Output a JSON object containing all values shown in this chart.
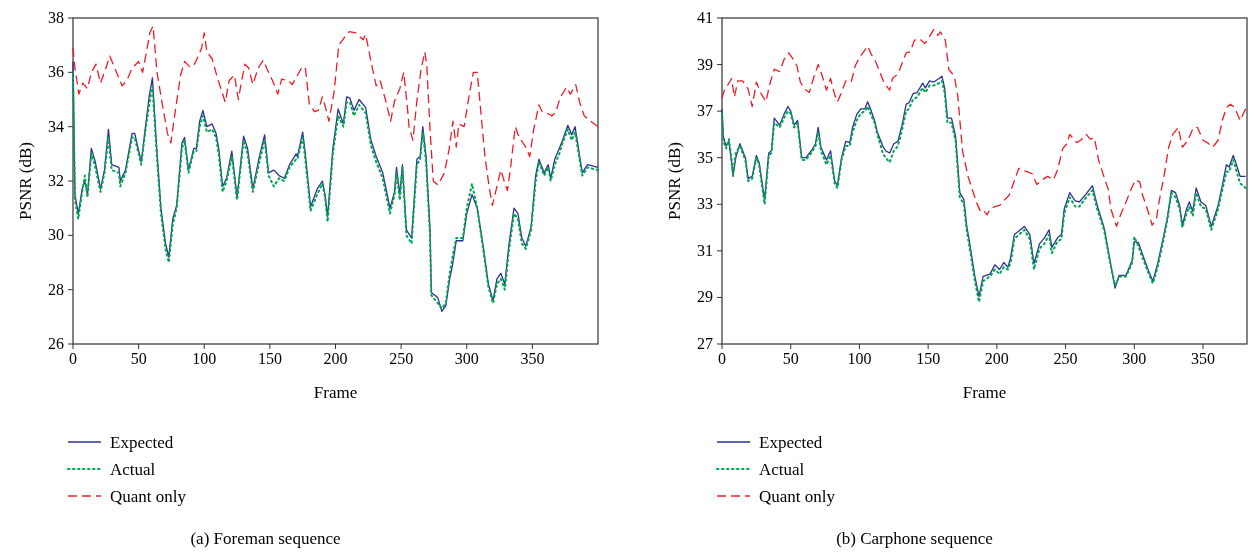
{
  "chart_data": [
    {
      "type": "line",
      "title": "(a) Foreman sequence",
      "xlabel": "Frame",
      "ylabel": "PSNR (dB)",
      "xlim": [
        0,
        400
      ],
      "xticks": [
        0,
        50,
        100,
        150,
        200,
        250,
        300,
        350
      ],
      "ylim": [
        26,
        38
      ],
      "yticks": [
        26,
        28,
        30,
        32,
        34,
        36,
        38
      ],
      "legend": "bottom left",
      "series": [
        {
          "name": "Expected",
          "color": "#2e3192",
          "line_style": "solid",
          "x": [
            0,
            1.5,
            4,
            7,
            9,
            11,
            14,
            17,
            20,
            21,
            24,
            27,
            29.5,
            35,
            36,
            40,
            45,
            47,
            52,
            55,
            58,
            60.5,
            63.5,
            67,
            70.5,
            73,
            76,
            79,
            83,
            85,
            88,
            92,
            94,
            96.5,
            99,
            102,
            106,
            109,
            111,
            114,
            117,
            121,
            125,
            130,
            133,
            137,
            142,
            146,
            149,
            153,
            157,
            161,
            165,
            170,
            171,
            175,
            177,
            181,
            186,
            190,
            192,
            194,
            198,
            202,
            206,
            208.5,
            211,
            214,
            218,
            223,
            227,
            231,
            236,
            241.5,
            245,
            246.5,
            249,
            251,
            254,
            258,
            262,
            264.5,
            266.5,
            269,
            272,
            273,
            278,
            281,
            284,
            287,
            289.5,
            292,
            297,
            300,
            304,
            308,
            312.5,
            316.5,
            320,
            323,
            326,
            329,
            332,
            336,
            339,
            342,
            345,
            349,
            352.5,
            355,
            359,
            362,
            364,
            367,
            370.5,
            373,
            377,
            380,
            382.5,
            388,
            392,
            400
          ],
          "values": [
            36.4,
            31.5,
            30.8,
            31.7,
            32.0,
            31.5,
            33.2,
            32.7,
            31.95,
            31.7,
            32.4,
            33.9,
            32.6,
            32.5,
            32.0,
            32.4,
            33.75,
            33.75,
            32.7,
            33.9,
            35.1,
            35.8,
            33.4,
            31.0,
            29.7,
            29.2,
            30.6,
            31.1,
            33.4,
            33.6,
            32.4,
            33.2,
            33.2,
            34.2,
            34.6,
            34.0,
            34.1,
            33.75,
            33.2,
            31.8,
            32.1,
            33.1,
            31.4,
            33.65,
            33.2,
            31.7,
            32.9,
            33.7,
            32.3,
            32.4,
            32.2,
            32.1,
            32.6,
            33.0,
            32.9,
            33.8,
            33.0,
            31.05,
            31.7,
            32.0,
            31.5,
            30.7,
            33.2,
            34.65,
            34.1,
            35.1,
            35.05,
            34.6,
            35.0,
            34.7,
            33.5,
            32.9,
            32.3,
            31.0,
            31.6,
            32.5,
            31.5,
            32.6,
            30.2,
            29.9,
            32.8,
            32.9,
            34.0,
            32.9,
            30.2,
            27.9,
            27.7,
            27.2,
            27.4,
            28.4,
            29.0,
            29.8,
            29.8,
            30.8,
            31.5,
            31.0,
            29.6,
            28.2,
            27.6,
            28.4,
            28.6,
            28.2,
            29.6,
            31.0,
            30.8,
            29.9,
            29.6,
            30.3,
            32.2,
            32.8,
            32.3,
            32.6,
            32.1,
            32.8,
            33.2,
            33.5,
            34.05,
            33.7,
            34.0,
            32.3,
            32.6,
            32.5
          ]
        },
        {
          "name": "Actual",
          "color": "#00a651",
          "line_style": "dotted",
          "x": [
            0,
            1.5,
            4,
            7,
            9,
            11,
            14,
            17,
            20,
            21,
            24,
            27,
            29.5,
            35,
            36,
            40,
            45,
            47,
            52,
            55,
            58,
            60.5,
            63.5,
            67,
            70.5,
            73,
            76,
            79,
            83,
            85,
            88,
            92,
            94,
            96.5,
            99,
            102,
            106,
            109,
            111,
            114,
            117,
            121,
            125,
            130,
            133,
            137,
            142,
            146,
            149,
            153,
            157,
            161,
            165,
            170,
            171,
            175,
            177,
            181,
            186,
            190,
            192,
            194,
            198,
            202,
            206,
            208.5,
            211,
            214,
            218,
            223,
            227,
            231,
            236,
            241.5,
            245,
            246.5,
            249,
            251,
            254,
            258,
            262,
            264.5,
            266.5,
            269,
            272,
            273,
            278,
            281,
            284,
            287,
            289.5,
            292,
            297,
            300,
            304,
            308,
            312.5,
            316.5,
            320,
            323,
            326,
            329,
            332,
            336,
            339,
            342,
            345,
            349,
            352.5,
            355,
            359,
            362,
            364,
            367,
            370.5,
            373,
            377,
            380,
            382.5,
            388,
            392,
            400
          ],
          "values": [
            36.0,
            31.3,
            30.6,
            31.6,
            32.2,
            31.4,
            33.0,
            32.5,
            31.8,
            31.6,
            32.3,
            33.6,
            32.4,
            32.3,
            31.8,
            32.3,
            33.6,
            33.6,
            32.6,
            33.8,
            34.8,
            35.5,
            33.2,
            30.8,
            29.5,
            29.0,
            30.4,
            31.0,
            33.2,
            33.5,
            32.3,
            33.1,
            33.1,
            34.0,
            34.4,
            33.8,
            33.9,
            33.6,
            33.0,
            31.6,
            32.0,
            32.9,
            31.3,
            33.5,
            33.0,
            31.6,
            32.7,
            33.5,
            32.2,
            31.8,
            32.1,
            32.0,
            32.5,
            32.8,
            32.8,
            33.6,
            32.8,
            30.9,
            31.5,
            31.9,
            31.4,
            30.5,
            33.0,
            34.4,
            34.0,
            34.9,
            34.9,
            34.4,
            34.8,
            34.5,
            33.3,
            32.7,
            32.1,
            30.8,
            31.5,
            32.3,
            31.3,
            32.5,
            30.0,
            29.7,
            32.6,
            32.8,
            33.8,
            32.7,
            30.0,
            27.8,
            27.5,
            27.3,
            27.5,
            28.6,
            29.3,
            29.9,
            29.9,
            31.0,
            31.9,
            31.0,
            29.5,
            28.1,
            27.5,
            28.2,
            28.4,
            28.0,
            29.4,
            30.8,
            30.6,
            29.7,
            29.5,
            30.2,
            32.0,
            32.7,
            32.2,
            32.5,
            32.0,
            32.6,
            33.0,
            33.4,
            33.9,
            33.5,
            33.8,
            32.2,
            32.5,
            32.4
          ]
        },
        {
          "name": "Quant only",
          "color": "#ed1c24",
          "line_style": "dashed",
          "x": [
            0,
            1.5,
            4.5,
            7.5,
            11,
            14,
            17.5,
            21,
            25,
            28,
            31,
            34,
            37.5,
            41,
            45,
            50,
            53,
            56,
            58.5,
            61,
            64,
            68.5,
            72,
            74.5,
            78,
            82,
            85,
            89,
            92,
            95.5,
            98,
            100,
            102,
            106,
            110,
            114,
            116,
            119,
            123,
            126,
            128.5,
            131,
            134,
            137,
            141,
            145,
            148,
            152,
            156,
            159,
            164,
            167,
            170,
            174,
            177,
            180,
            184,
            187,
            190,
            193,
            195,
            199,
            202.5,
            207,
            210.5,
            215.5,
            221,
            223,
            227,
            231,
            234,
            238,
            242,
            245,
            249,
            252,
            255,
            256,
            259,
            262,
            265,
            268,
            269.5,
            272,
            274.5,
            278,
            283,
            286.5,
            289.5,
            292,
            294,
            298,
            302,
            305,
            308,
            311,
            314,
            317,
            319.5,
            322,
            326,
            328.5,
            331,
            333.5,
            337,
            340,
            345,
            348,
            351,
            355,
            357.5,
            361,
            365,
            368,
            371,
            376,
            379,
            383,
            386,
            389.5,
            393,
            400
          ],
          "values": [
            36.9,
            36.15,
            35.2,
            35.6,
            35.4,
            36.0,
            36.3,
            35.6,
            36.15,
            36.6,
            36.25,
            35.9,
            35.5,
            35.7,
            36.15,
            36.4,
            36.0,
            36.75,
            37.45,
            37.7,
            36.0,
            34.7,
            33.75,
            33.4,
            34.6,
            35.9,
            36.4,
            36.2,
            36.25,
            36.6,
            36.9,
            37.45,
            36.75,
            36.5,
            35.8,
            35.2,
            34.9,
            35.7,
            35.9,
            35.0,
            35.7,
            36.3,
            36.15,
            35.55,
            36.15,
            36.45,
            36.1,
            35.7,
            35.2,
            35.75,
            35.7,
            35.55,
            35.8,
            36.15,
            36.2,
            34.85,
            34.55,
            34.6,
            35.1,
            34.6,
            34.2,
            35.3,
            37.0,
            37.3,
            37.5,
            37.45,
            37.2,
            37.4,
            36.4,
            35.5,
            35.7,
            35.0,
            34.2,
            34.95,
            35.4,
            36.0,
            34.6,
            34.0,
            33.5,
            34.95,
            36.05,
            36.75,
            36.3,
            33.9,
            32.0,
            31.85,
            32.3,
            33.15,
            34.2,
            33.25,
            34.1,
            34.0,
            35.2,
            36.0,
            36.0,
            34.4,
            32.85,
            31.8,
            31.1,
            31.6,
            32.4,
            32.0,
            31.65,
            32.55,
            34.0,
            33.6,
            33.25,
            32.9,
            33.9,
            34.8,
            34.55,
            34.5,
            34.4,
            34.55,
            35.05,
            35.45,
            35.2,
            35.55,
            34.9,
            34.4,
            34.25,
            34.0
          ]
        }
      ]
    },
    {
      "type": "line",
      "title": "(b) Carphone sequence",
      "xlabel": "Frame",
      "ylabel": "PSNR (dB)",
      "xlim": [
        0,
        382
      ],
      "xticks": [
        0,
        50,
        100,
        150,
        200,
        250,
        300,
        350
      ],
      "ylim": [
        27,
        41
      ],
      "yticks": [
        27,
        29,
        31,
        33,
        35,
        37,
        39,
        41
      ],
      "legend": "bottom left",
      "series": [
        {
          "name": "Expected",
          "color": "#2e3192",
          "line_style": "solid",
          "x": [
            0,
            1,
            3,
            5,
            7,
            8,
            10,
            13,
            15,
            17,
            19,
            22,
            25,
            27,
            31,
            32.5,
            34,
            36,
            38,
            42,
            45,
            48,
            50,
            52.5,
            55,
            58,
            61,
            65,
            68,
            70,
            72,
            76,
            79,
            82,
            84,
            87,
            90,
            93,
            95,
            98,
            101,
            104,
            106,
            108,
            111,
            113,
            117,
            119,
            122,
            125,
            128,
            131,
            134,
            136,
            139,
            142,
            146,
            148,
            151,
            154,
            158,
            160,
            162,
            164,
            167,
            170,
            173,
            176,
            178,
            180,
            184,
            187,
            190,
            195,
            198.5,
            202,
            205,
            208,
            210,
            212.7,
            216,
            220,
            224,
            227,
            231,
            234.5,
            238,
            240,
            244,
            247,
            249,
            253,
            257,
            260,
            265,
            269.5,
            273,
            278,
            282,
            286,
            289,
            294,
            298.5,
            300,
            303,
            306,
            310,
            313.5,
            317,
            321,
            324,
            327,
            330,
            333,
            335,
            338,
            340,
            342.5,
            345,
            348.5,
            352,
            356,
            361,
            364,
            367,
            369,
            372,
            374,
            377,
            381
          ],
          "values": [
            37.1,
            35.9,
            35.5,
            35.7,
            34.8,
            34.2,
            35.0,
            35.6,
            35.3,
            35.0,
            34.1,
            34.2,
            35.1,
            34.8,
            33.2,
            34.2,
            35.2,
            35.3,
            36.7,
            36.4,
            36.85,
            37.2,
            37.0,
            36.4,
            36.6,
            35.0,
            35.0,
            35.3,
            35.6,
            36.3,
            35.45,
            34.9,
            35.3,
            34.0,
            33.8,
            35.0,
            35.7,
            35.65,
            36.3,
            36.85,
            37.1,
            37.1,
            37.4,
            37.1,
            36.6,
            36.1,
            35.5,
            35.3,
            35.2,
            35.6,
            35.7,
            36.4,
            37.3,
            37.35,
            37.75,
            37.8,
            38.2,
            38.0,
            38.3,
            38.25,
            38.4,
            38.5,
            38.0,
            36.7,
            36.7,
            35.9,
            33.5,
            33.2,
            32.1,
            31.4,
            29.9,
            29.05,
            29.9,
            30.0,
            30.4,
            30.2,
            30.5,
            30.3,
            30.7,
            31.7,
            31.85,
            32.05,
            31.7,
            30.45,
            31.3,
            31.55,
            31.9,
            31.15,
            31.55,
            31.7,
            32.8,
            33.5,
            33.15,
            33.1,
            33.45,
            33.8,
            32.95,
            32.0,
            30.7,
            29.4,
            29.95,
            29.95,
            30.6,
            31.4,
            31.35,
            30.85,
            30.2,
            29.7,
            30.45,
            31.55,
            32.4,
            33.6,
            33.5,
            32.95,
            32.1,
            32.8,
            33.1,
            32.7,
            33.7,
            33.1,
            32.95,
            32.05,
            32.95,
            33.8,
            34.7,
            34.6,
            35.1,
            34.75,
            34.2,
            34.2
          ]
        },
        {
          "name": "Actual",
          "color": "#00a651",
          "line_style": "dotted",
          "x": [
            0,
            1,
            3,
            5,
            7,
            8,
            10,
            13,
            15,
            17,
            19,
            22,
            25,
            27,
            31,
            32.5,
            34,
            36,
            38,
            42,
            45,
            48,
            50,
            52.5,
            55,
            58,
            61,
            65,
            68,
            70,
            72,
            76,
            79,
            82,
            84,
            87,
            90,
            93,
            95,
            98,
            101,
            104,
            106,
            108,
            111,
            113,
            117,
            119,
            122,
            125,
            128,
            131,
            134,
            136,
            139,
            142,
            146,
            148,
            151,
            154,
            158,
            160,
            162,
            164,
            167,
            170,
            173,
            176,
            178,
            180,
            184,
            187,
            190,
            195,
            198.5,
            202,
            205,
            208,
            210,
            212.7,
            216,
            220,
            224,
            227,
            231,
            234.5,
            238,
            240,
            244,
            247,
            249,
            253,
            257,
            260,
            265,
            269.5,
            273,
            278,
            282,
            286,
            289,
            294,
            298.5,
            300,
            303,
            306,
            310,
            313.5,
            317,
            321,
            324,
            327,
            330,
            333,
            335,
            338,
            340,
            342.5,
            345,
            348.5,
            352,
            356,
            361,
            364,
            367,
            369,
            372,
            374,
            377,
            381
          ],
          "values": [
            36.9,
            35.7,
            35.4,
            35.8,
            34.9,
            34.3,
            35.2,
            35.5,
            35.2,
            34.9,
            34.0,
            34.1,
            35.0,
            34.7,
            33.0,
            34.0,
            35.1,
            35.2,
            36.5,
            36.3,
            36.7,
            37.0,
            36.9,
            36.3,
            36.5,
            34.9,
            34.9,
            35.2,
            35.5,
            36.1,
            35.3,
            34.7,
            35.1,
            33.9,
            33.7,
            34.9,
            35.5,
            35.5,
            36.1,
            36.6,
            36.9,
            37.0,
            37.2,
            36.9,
            36.5,
            36.0,
            35.2,
            35.0,
            34.8,
            35.3,
            35.5,
            36.2,
            37.0,
            37.1,
            37.5,
            37.6,
            38.0,
            37.8,
            38.1,
            38.1,
            38.2,
            38.3,
            37.8,
            36.5,
            36.5,
            35.7,
            33.3,
            33.0,
            31.9,
            31.2,
            29.7,
            28.8,
            29.7,
            29.9,
            30.2,
            30.0,
            30.3,
            30.2,
            30.5,
            31.5,
            31.7,
            31.9,
            31.5,
            30.2,
            31.1,
            31.3,
            31.7,
            30.9,
            31.4,
            31.5,
            32.6,
            33.3,
            32.9,
            32.9,
            33.3,
            33.6,
            32.8,
            31.9,
            30.6,
            29.5,
            29.9,
            29.9,
            30.5,
            31.6,
            31.2,
            30.7,
            30.1,
            29.6,
            30.3,
            31.4,
            32.3,
            33.5,
            33.3,
            32.8,
            32.0,
            32.6,
            32.9,
            32.5,
            33.5,
            32.9,
            32.8,
            31.9,
            32.8,
            33.6,
            34.4,
            34.4,
            34.9,
            34.5,
            33.9,
            33.7
          ]
        },
        {
          "name": "Quant only",
          "color": "#ed1c24",
          "line_style": "dashed",
          "x": [
            0,
            2,
            4,
            7,
            9,
            11.5,
            15,
            19,
            22,
            25,
            28,
            32,
            34.5,
            38,
            42,
            45,
            48.5,
            51,
            54.5,
            57,
            60,
            63.5,
            67,
            70,
            73,
            76,
            79,
            82,
            84,
            87,
            90,
            94,
            97,
            100,
            103,
            106,
            108.5,
            112,
            115,
            118,
            122,
            124,
            128,
            130,
            134,
            137,
            140,
            144,
            147.5,
            151,
            154,
            157,
            159,
            162.5,
            165,
            169,
            171.5,
            175,
            179,
            182,
            185,
            188,
            190,
            193,
            195,
            198.5,
            202,
            205,
            209,
            213,
            216,
            219,
            222,
            226,
            229,
            233,
            237,
            241,
            244,
            248,
            251,
            253,
            258,
            261,
            265,
            268,
            271,
            274,
            277,
            281,
            283,
            287,
            290,
            294,
            298,
            301,
            304,
            306,
            310,
            313,
            316,
            318,
            322,
            325,
            328,
            332,
            335,
            339,
            343,
            346,
            350,
            353,
            357,
            361,
            364,
            367,
            370,
            373,
            377,
            381
          ],
          "values": [
            37.55,
            37.95,
            38.1,
            38.4,
            37.6,
            38.3,
            38.3,
            37.95,
            37.2,
            38.25,
            37.8,
            37.4,
            38.1,
            38.8,
            38.7,
            39.2,
            39.5,
            39.3,
            38.95,
            38.25,
            37.95,
            37.8,
            38.5,
            39.0,
            38.5,
            37.9,
            38.4,
            37.7,
            37.4,
            37.8,
            38.3,
            38.25,
            38.95,
            39.3,
            39.55,
            39.8,
            39.45,
            39.1,
            38.65,
            38.2,
            37.9,
            38.4,
            38.6,
            38.9,
            39.5,
            39.55,
            40.05,
            40.1,
            39.9,
            40.2,
            40.5,
            40.25,
            40.4,
            40.05,
            38.8,
            38.5,
            37.7,
            35.3,
            34.2,
            33.65,
            33.1,
            32.7,
            32.75,
            32.55,
            32.8,
            32.9,
            32.95,
            33.15,
            33.4,
            34.05,
            34.55,
            34.45,
            34.4,
            34.3,
            33.85,
            34.05,
            34.2,
            34.05,
            34.45,
            35.4,
            35.6,
            36.0,
            35.65,
            35.75,
            36.0,
            35.8,
            35.85,
            34.9,
            34.35,
            33.65,
            32.8,
            32.05,
            32.55,
            33.1,
            33.7,
            34.05,
            33.95,
            33.4,
            32.7,
            32.1,
            32.35,
            33.1,
            34.35,
            35.45,
            36.0,
            36.3,
            35.45,
            35.75,
            36.3,
            36.3,
            35.75,
            35.65,
            35.45,
            35.75,
            36.6,
            37.15,
            37.3,
            37.15,
            36.6,
            37.1
          ]
        }
      ]
    }
  ]
}
